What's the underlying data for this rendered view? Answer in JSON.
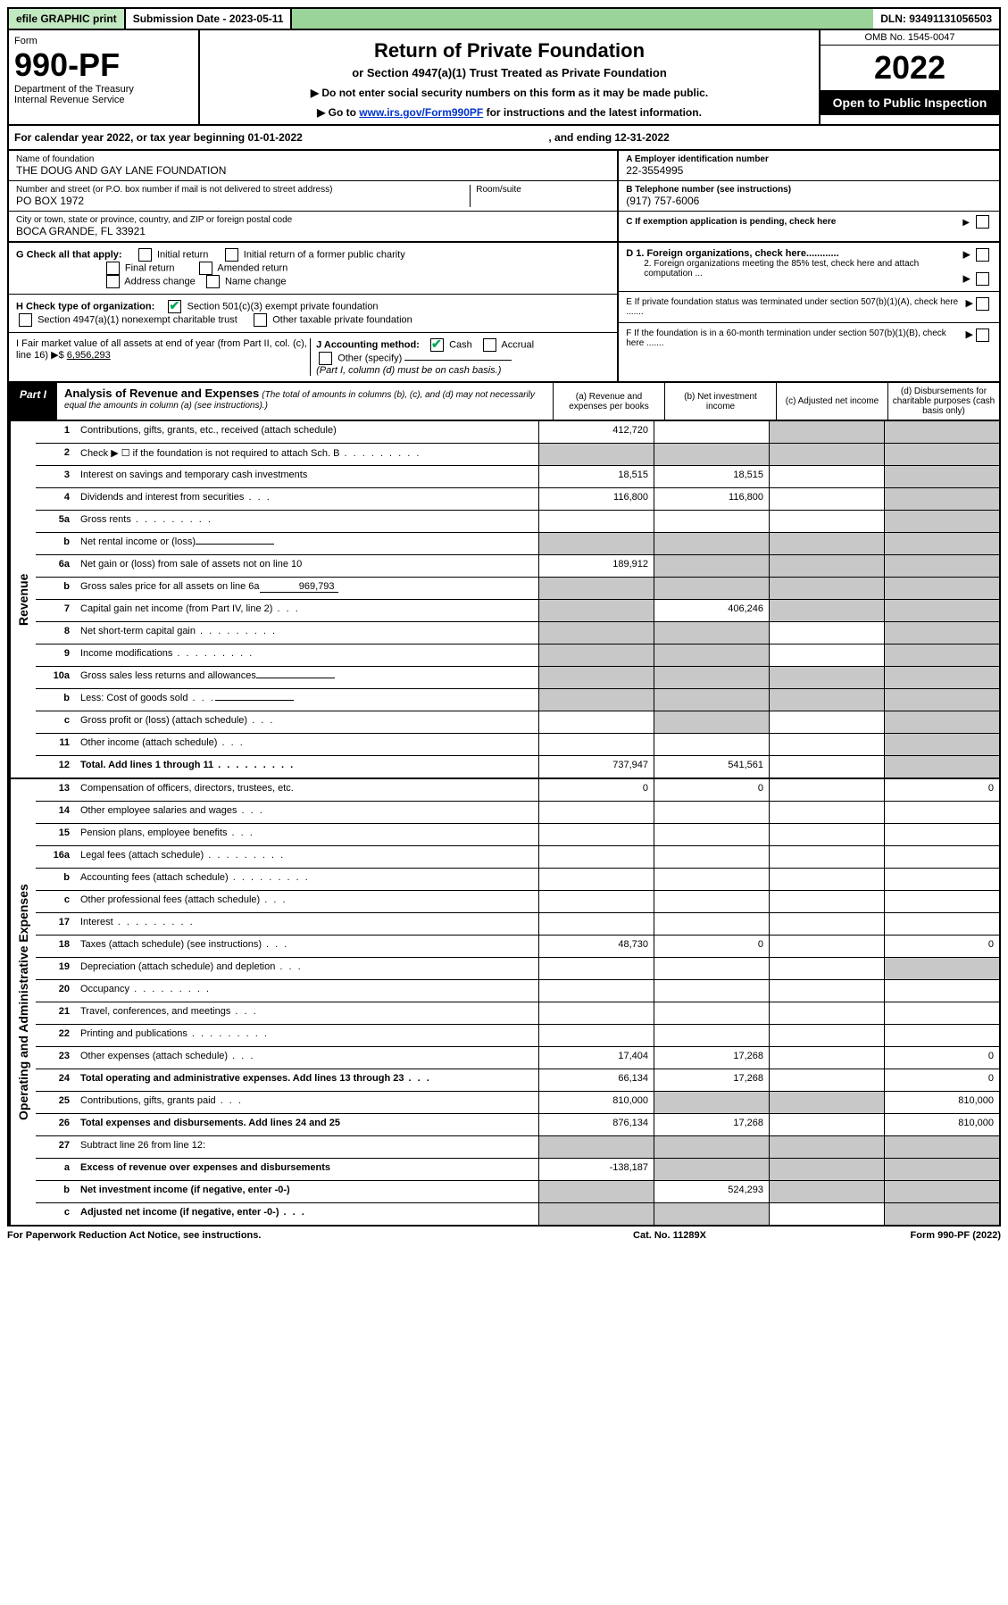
{
  "topbar": {
    "print": "efile GRAPHIC print",
    "submission": "Submission Date - 2023-05-11",
    "dln": "DLN: 93491131056503"
  },
  "header": {
    "form_label": "Form",
    "form_no": "990-PF",
    "dept1": "Department of the Treasury",
    "dept2": "Internal Revenue Service",
    "title": "Return of Private Foundation",
    "subtitle": "or Section 4947(a)(1) Trust Treated as Private Foundation",
    "instr1": "▶ Do not enter social security numbers on this form as it may be made public.",
    "instr2_pre": "▶ Go to ",
    "instr2_link": "www.irs.gov/Form990PF",
    "instr2_post": " for instructions and the latest information.",
    "omb": "OMB No. 1545-0047",
    "year": "2022",
    "open": "Open to Public Inspection"
  },
  "calendar": {
    "left": "For calendar year 2022, or tax year beginning 01-01-2022",
    "right": ", and ending 12-31-2022"
  },
  "entity": {
    "name_label": "Name of foundation",
    "name": "THE DOUG AND GAY LANE FOUNDATION",
    "addr_label": "Number and street (or P.O. box number if mail is not delivered to street address)",
    "addr": "PO BOX 1972",
    "room_label": "Room/suite",
    "city_label": "City or town, state or province, country, and ZIP or foreign postal code",
    "city": "BOCA GRANDE, FL  33921",
    "ein_label": "A Employer identification number",
    "ein": "22-3554995",
    "phone_label": "B Telephone number (see instructions)",
    "phone": "(917) 757-6006",
    "c_label": "C If exemption application is pending, check here"
  },
  "checks": {
    "g_label": "G Check all that apply:",
    "g1": "Initial return",
    "g2": "Initial return of a former public charity",
    "g3": "Final return",
    "g4": "Amended return",
    "g5": "Address change",
    "g6": "Name change",
    "h_label": "H Check type of organization:",
    "h1": "Section 501(c)(3) exempt private foundation",
    "h2": "Section 4947(a)(1) nonexempt charitable trust",
    "h3": "Other taxable private foundation",
    "i_label": "I Fair market value of all assets at end of year (from Part II, col. (c), line 16) ▶$",
    "i_value": "6,956,293",
    "j_label": "J Accounting method:",
    "j1": "Cash",
    "j2": "Accrual",
    "j3": "Other (specify)",
    "j_note": "(Part I, column (d) must be on cash basis.)",
    "d1": "D 1. Foreign organizations, check here............",
    "d2": "2. Foreign organizations meeting the 85% test, check here and attach computation ...",
    "e": "E  If private foundation status was terminated under section 507(b)(1)(A), check here .......",
    "f": "F  If the foundation is in a 60-month termination under section 507(b)(1)(B), check here .......",
    "arrow": "▶"
  },
  "part1": {
    "label": "Part I",
    "title": "Analysis of Revenue and Expenses",
    "note": "(The total of amounts in columns (b), (c), and (d) may not necessarily equal the amounts in column (a) (see instructions).)",
    "col_a": "(a)  Revenue and expenses per books",
    "col_b": "(b)  Net investment income",
    "col_c": "(c)  Adjusted net income",
    "col_d": "(d)  Disbursements for charitable purposes (cash basis only)"
  },
  "sections": {
    "revenue": "Revenue",
    "expenses": "Operating and Administrative Expenses"
  },
  "rows": [
    {
      "n": "1",
      "label": "Contributions, gifts, grants, etc., received (attach schedule)",
      "a": "412,720",
      "b": "",
      "c": "shaded",
      "d": "shaded"
    },
    {
      "n": "2",
      "label": "Check ▶ ☐ if the foundation is not required to attach Sch. B",
      "dots": true,
      "a": "shaded",
      "b": "shaded",
      "c": "shaded",
      "d": "shaded"
    },
    {
      "n": "3",
      "label": "Interest on savings and temporary cash investments",
      "a": "18,515",
      "b": "18,515",
      "c": "",
      "d": "shaded"
    },
    {
      "n": "4",
      "label": "Dividends and interest from securities",
      "dots": "short",
      "a": "116,800",
      "b": "116,800",
      "c": "",
      "d": "shaded"
    },
    {
      "n": "5a",
      "label": "Gross rents",
      "dots": true,
      "a": "",
      "b": "",
      "c": "",
      "d": "shaded"
    },
    {
      "n": "b",
      "label": "Net rental income or (loss)",
      "inline": "",
      "a": "shaded",
      "b": "shaded",
      "c": "shaded",
      "d": "shaded"
    },
    {
      "n": "6a",
      "label": "Net gain or (loss) from sale of assets not on line 10",
      "a": "189,912",
      "b": "shaded",
      "c": "shaded",
      "d": "shaded"
    },
    {
      "n": "b",
      "label": "Gross sales price for all assets on line 6a",
      "inline": "969,793",
      "a": "shaded",
      "b": "shaded",
      "c": "shaded",
      "d": "shaded"
    },
    {
      "n": "7",
      "label": "Capital gain net income (from Part IV, line 2)",
      "dots": "short",
      "a": "shaded",
      "b": "406,246",
      "c": "shaded",
      "d": "shaded"
    },
    {
      "n": "8",
      "label": "Net short-term capital gain",
      "dots": true,
      "a": "shaded",
      "b": "shaded",
      "c": "",
      "d": "shaded"
    },
    {
      "n": "9",
      "label": "Income modifications",
      "dots": true,
      "a": "shaded",
      "b": "shaded",
      "c": "",
      "d": "shaded"
    },
    {
      "n": "10a",
      "label": "Gross sales less returns and allowances",
      "inline": "",
      "a": "shaded",
      "b": "shaded",
      "c": "shaded",
      "d": "shaded"
    },
    {
      "n": "b",
      "label": "Less: Cost of goods sold",
      "dots": "short",
      "inline": "",
      "a": "shaded",
      "b": "shaded",
      "c": "shaded",
      "d": "shaded"
    },
    {
      "n": "c",
      "label": "Gross profit or (loss) (attach schedule)",
      "dots": "short",
      "a": "",
      "b": "shaded",
      "c": "",
      "d": "shaded"
    },
    {
      "n": "11",
      "label": "Other income (attach schedule)",
      "dots": "short",
      "a": "",
      "b": "",
      "c": "",
      "d": "shaded"
    },
    {
      "n": "12",
      "label": "Total. Add lines 1 through 11",
      "bold": true,
      "dots": true,
      "a": "737,947",
      "b": "541,561",
      "c": "",
      "d": "shaded"
    }
  ],
  "erows": [
    {
      "n": "13",
      "label": "Compensation of officers, directors, trustees, etc.",
      "a": "0",
      "b": "0",
      "c": "",
      "d": "0"
    },
    {
      "n": "14",
      "label": "Other employee salaries and wages",
      "dots": "short",
      "a": "",
      "b": "",
      "c": "",
      "d": ""
    },
    {
      "n": "15",
      "label": "Pension plans, employee benefits",
      "dots": "short",
      "a": "",
      "b": "",
      "c": "",
      "d": ""
    },
    {
      "n": "16a",
      "label": "Legal fees (attach schedule)",
      "dots": true,
      "a": "",
      "b": "",
      "c": "",
      "d": ""
    },
    {
      "n": "b",
      "label": "Accounting fees (attach schedule)",
      "dots": true,
      "a": "",
      "b": "",
      "c": "",
      "d": ""
    },
    {
      "n": "c",
      "label": "Other professional fees (attach schedule)",
      "dots": "short",
      "a": "",
      "b": "",
      "c": "",
      "d": ""
    },
    {
      "n": "17",
      "label": "Interest",
      "dots": true,
      "a": "",
      "b": "",
      "c": "",
      "d": ""
    },
    {
      "n": "18",
      "label": "Taxes (attach schedule) (see instructions)",
      "dots": "short",
      "a": "48,730",
      "b": "0",
      "c": "",
      "d": "0"
    },
    {
      "n": "19",
      "label": "Depreciation (attach schedule) and depletion",
      "dots": "short",
      "a": "",
      "b": "",
      "c": "",
      "d": "shaded"
    },
    {
      "n": "20",
      "label": "Occupancy",
      "dots": true,
      "a": "",
      "b": "",
      "c": "",
      "d": ""
    },
    {
      "n": "21",
      "label": "Travel, conferences, and meetings",
      "dots": "short",
      "a": "",
      "b": "",
      "c": "",
      "d": ""
    },
    {
      "n": "22",
      "label": "Printing and publications",
      "dots": true,
      "a": "",
      "b": "",
      "c": "",
      "d": ""
    },
    {
      "n": "23",
      "label": "Other expenses (attach schedule)",
      "dots": "short",
      "a": "17,404",
      "b": "17,268",
      "c": "",
      "d": "0"
    },
    {
      "n": "24",
      "label": "Total operating and administrative expenses. Add lines 13 through 23",
      "bold": true,
      "dots": "short",
      "a": "66,134",
      "b": "17,268",
      "c": "",
      "d": "0"
    },
    {
      "n": "25",
      "label": "Contributions, gifts, grants paid",
      "dots": "short",
      "a": "810,000",
      "b": "shaded",
      "c": "shaded",
      "d": "810,000"
    },
    {
      "n": "26",
      "label": "Total expenses and disbursements. Add lines 24 and 25",
      "bold": true,
      "a": "876,134",
      "b": "17,268",
      "c": "",
      "d": "810,000"
    },
    {
      "n": "27",
      "label": "Subtract line 26 from line 12:",
      "a": "shaded",
      "b": "shaded",
      "c": "shaded",
      "d": "shaded"
    },
    {
      "n": "a",
      "label": "Excess of revenue over expenses and disbursements",
      "bold": true,
      "a": "-138,187",
      "b": "shaded",
      "c": "shaded",
      "d": "shaded"
    },
    {
      "n": "b",
      "label": "Net investment income (if negative, enter -0-)",
      "bold": true,
      "a": "shaded",
      "b": "524,293",
      "c": "shaded",
      "d": "shaded"
    },
    {
      "n": "c",
      "label": "Adjusted net income (if negative, enter -0-)",
      "bold": true,
      "dots": "short",
      "a": "shaded",
      "b": "shaded",
      "c": "",
      "d": "shaded"
    }
  ],
  "footer": {
    "left": "For Paperwork Reduction Act Notice, see instructions.",
    "center": "Cat. No. 11289X",
    "right": "Form 990-PF (2022)"
  }
}
